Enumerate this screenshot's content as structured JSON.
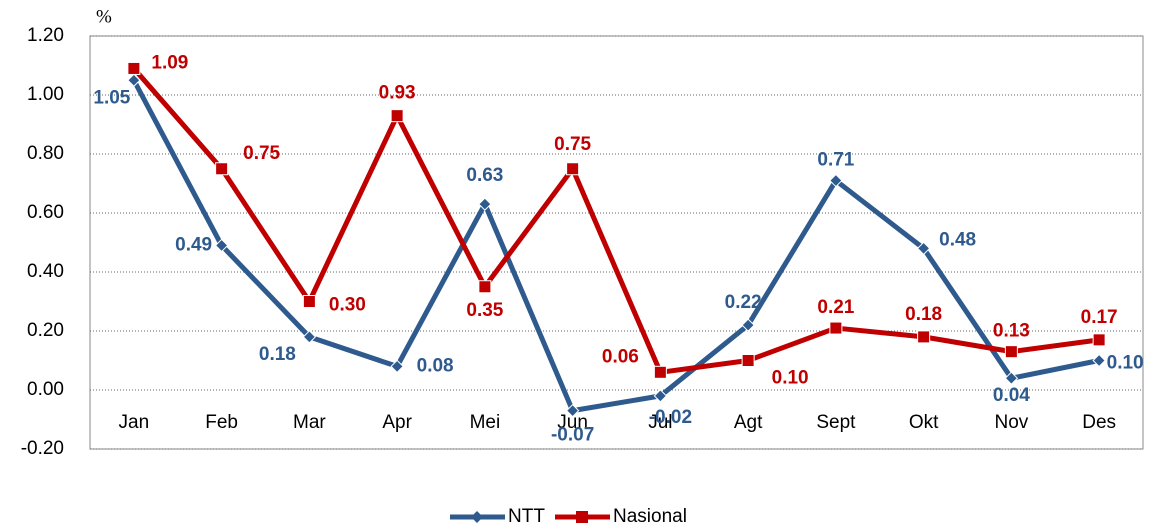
{
  "chart_data": {
    "type": "line",
    "y_label": "%",
    "categories": [
      "Jan",
      "Feb",
      "Mar",
      "Apr",
      "Mei",
      "Jun",
      "Jul",
      "Agt",
      "Sept",
      "Okt",
      "Nov",
      "Des"
    ],
    "series": [
      {
        "name": "NTT",
        "color": "#2e5a8e",
        "values": [
          1.05,
          0.49,
          0.18,
          0.08,
          0.63,
          -0.07,
          -0.02,
          0.22,
          0.71,
          0.48,
          0.04,
          0.1
        ],
        "value_labels": [
          "1.05",
          "0.49",
          "0.18",
          "0.08",
          "0.63",
          "-0.07",
          "-0.02",
          "0.22",
          "0.71",
          "0.48",
          "0.04",
          "0.10"
        ]
      },
      {
        "name": "Nasional",
        "color": "#c00000",
        "values": [
          1.09,
          0.75,
          0.3,
          0.93,
          0.35,
          0.75,
          0.06,
          0.1,
          0.21,
          0.18,
          0.13,
          0.17
        ],
        "value_labels": [
          "1.09",
          "0.75",
          "0.30",
          "0.93",
          "0.35",
          "0.75",
          "0.06",
          "0.10",
          "0.21",
          "0.18",
          "0.13",
          "0.17"
        ]
      }
    ],
    "ylim": [
      -0.2,
      1.2
    ],
    "yticks": [
      {
        "value": -0.2,
        "label": "-0.20"
      },
      {
        "value": 0,
        "label": "0.00"
      },
      {
        "value": 0.2,
        "label": "0.20"
      },
      {
        "value": 0.4,
        "label": "0.40"
      },
      {
        "value": 0.6,
        "label": "0.60"
      },
      {
        "value": 0.8,
        "label": "0.80"
      },
      {
        "value": 1.0,
        "label": "1.00"
      },
      {
        "value": 1.2,
        "label": "1.20"
      }
    ],
    "grid": true,
    "legend": "bottom"
  }
}
